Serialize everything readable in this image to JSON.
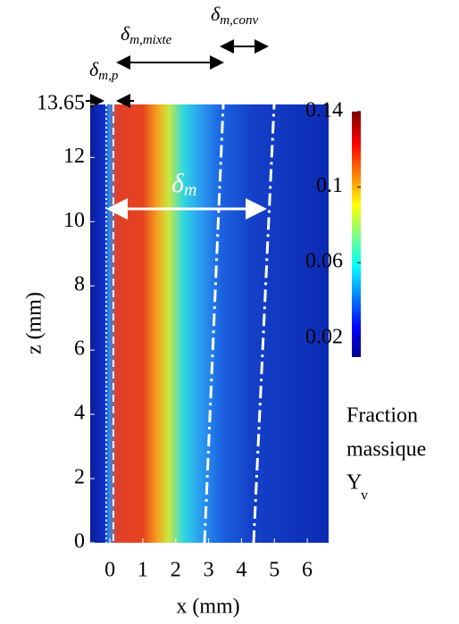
{
  "chart_data": {
    "type": "heatmap",
    "xlabel": "x (mm)",
    "ylabel": "z (mm)",
    "xlim": [
      -0.6,
      6.65
    ],
    "ylim": [
      0,
      13.65
    ],
    "xticks": [
      0,
      1,
      2,
      3,
      4,
      5,
      6
    ],
    "yticks": [
      0,
      2,
      4,
      6,
      8,
      10,
      12,
      13.65
    ],
    "clim": [
      0.01,
      0.14
    ],
    "cticks": [
      0.02,
      0.06,
      0.1,
      0.14
    ],
    "colorbar_label": [
      "Fraction",
      "massique",
      "Y"
    ],
    "colorbar_label_sub": "v",
    "annotations": [
      {
        "text": "δ",
        "sub": "m,p"
      },
      {
        "text": "δ",
        "sub": "m,mixte"
      },
      {
        "text": "δ",
        "sub": "m,conv"
      },
      {
        "text": "δ",
        "sub": "m"
      }
    ]
  }
}
